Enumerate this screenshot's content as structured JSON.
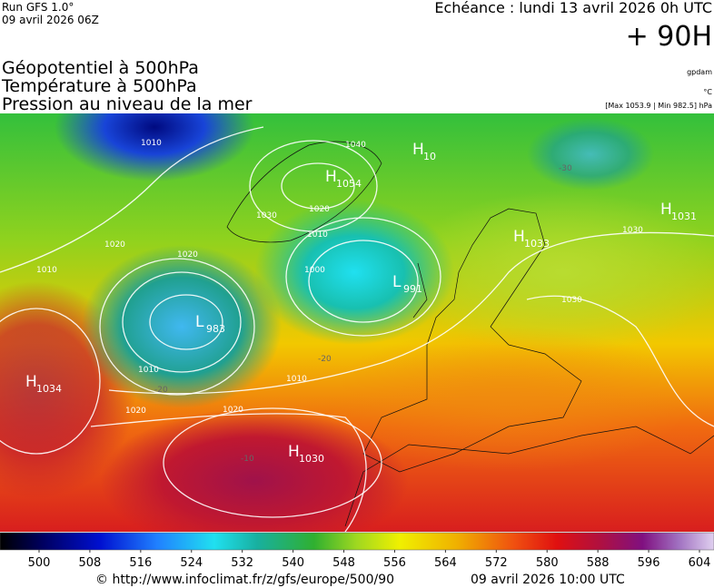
{
  "header": {
    "run": "Run GFS 1.0°",
    "run_date": "09 avril 2026 06Z",
    "echeance": "Echéance : lundi 13 avril 2026 0h UTC",
    "lead": "+ 90H"
  },
  "titles": [
    "Géopotentiel à 500hPa",
    "Température à 500hPa",
    "Pression au niveau de la mer"
  ],
  "units": [
    "gpdam",
    "°C"
  ],
  "extremes": "[Max 1053.9 | Min 982.5] hPa",
  "centers": [
    {
      "letter": "H",
      "value": "1034"
    },
    {
      "letter": "L",
      "value": "983"
    },
    {
      "letter": "H",
      "value": "1054"
    },
    {
      "letter": "L",
      "value": "991"
    },
    {
      "letter": "H",
      "value": "10"
    },
    {
      "letter": "H",
      "value": "1033"
    },
    {
      "letter": "H",
      "value": "1031"
    },
    {
      "letter": "H",
      "value": "1030"
    }
  ],
  "isobar_labels": [
    "1010",
    "1040",
    "1030",
    "1020",
    "1010",
    "1000",
    "1020",
    "1010",
    "1020",
    "1010",
    "1020",
    "1010",
    "1020",
    "1030",
    "1030"
  ],
  "temperature_labels": [
    "-20",
    "-20",
    "-10",
    "-30"
  ],
  "colorbar_ticks": [
    500,
    508,
    516,
    524,
    532,
    540,
    548,
    556,
    564,
    572,
    580,
    588,
    596,
    604
  ],
  "footer": {
    "url": "© http://www.infoclimat.fr/z/gfs/europe/500/90",
    "date": "09 avril 2026 10:00 UTC"
  }
}
